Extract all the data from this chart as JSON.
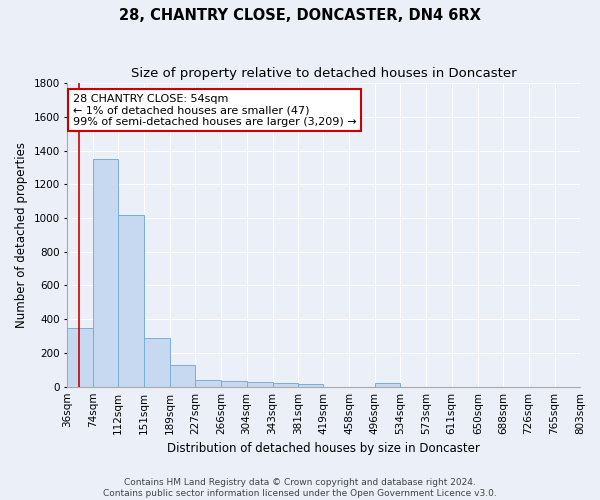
{
  "title": "28, CHANTRY CLOSE, DONCASTER, DN4 6RX",
  "subtitle": "Size of property relative to detached houses in Doncaster",
  "xlabel": "Distribution of detached houses by size in Doncaster",
  "ylabel": "Number of detached properties",
  "bin_labels": [
    "36sqm",
    "74sqm",
    "112sqm",
    "151sqm",
    "189sqm",
    "227sqm",
    "266sqm",
    "304sqm",
    "343sqm",
    "381sqm",
    "419sqm",
    "458sqm",
    "496sqm",
    "534sqm",
    "573sqm",
    "611sqm",
    "650sqm",
    "688sqm",
    "726sqm",
    "765sqm",
    "803sqm"
  ],
  "bin_edges": [
    36,
    74,
    112,
    151,
    189,
    227,
    266,
    304,
    343,
    381,
    419,
    458,
    496,
    534,
    573,
    611,
    650,
    688,
    726,
    765,
    803
  ],
  "bar_heights": [
    350,
    1350,
    1020,
    290,
    130,
    40,
    35,
    25,
    20,
    15,
    0,
    0,
    20,
    0,
    0,
    0,
    0,
    0,
    0,
    0
  ],
  "bar_color": "#c6d9f0",
  "bar_edge_color": "#7badd4",
  "bg_color": "#eaeff8",
  "grid_color": "#ffffff",
  "property_line_x": 54,
  "property_line_color": "#cc0000",
  "annotation_text_line1": "28 CHANTRY CLOSE: 54sqm",
  "annotation_text_line2": "← 1% of detached houses are smaller (47)",
  "annotation_text_line3": "99% of semi-detached houses are larger (3,209) →",
  "annotation_box_color": "#ffffff",
  "annotation_box_edge": "#cc0000",
  "ylim": [
    0,
    1800
  ],
  "yticks": [
    0,
    200,
    400,
    600,
    800,
    1000,
    1200,
    1400,
    1600,
    1800
  ],
  "footer_text": "Contains HM Land Registry data © Crown copyright and database right 2024.\nContains public sector information licensed under the Open Government Licence v3.0.",
  "title_fontsize": 10.5,
  "subtitle_fontsize": 9.5,
  "axis_label_fontsize": 8.5,
  "tick_fontsize": 7.5,
  "annotation_fontsize": 8,
  "footer_fontsize": 6.5
}
